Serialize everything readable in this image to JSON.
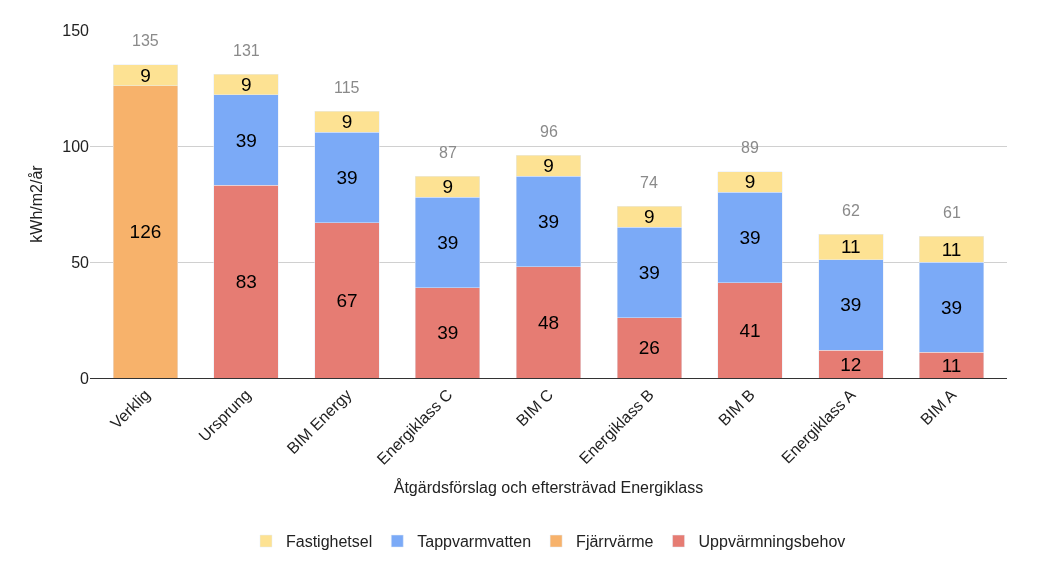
{
  "chart_data": {
    "type": "bar",
    "stacked": true,
    "xlabel": "Åtgärdsförslag och eftersträvad Energiklass",
    "ylabel": "kWh/m2/år",
    "categories": [
      "Verklig",
      "Ursprung",
      "BIM Energy",
      "Energiklass C",
      "BIM C",
      "Energiklass B",
      "BIM B",
      "Energiklass A",
      "BIM A"
    ],
    "series": [
      {
        "name": "Uppvärmningsbehov",
        "color": "#e67c73",
        "values": [
          null,
          83,
          67,
          39,
          48,
          26,
          41,
          12,
          11
        ]
      },
      {
        "name": "Fjärrvärme",
        "color": "#f7b26b",
        "values": [
          126,
          null,
          null,
          null,
          null,
          null,
          null,
          null,
          null
        ]
      },
      {
        "name": "Tappvarmvatten",
        "color": "#7baaf7",
        "values": [
          null,
          39,
          39,
          39,
          39,
          39,
          39,
          39,
          39
        ]
      },
      {
        "name": "Fastighetsel",
        "color": "#fde293",
        "values": [
          9,
          9,
          9,
          9,
          9,
          9,
          9,
          11,
          11
        ]
      }
    ],
    "totals": [
      "135",
      "131",
      "115",
      "87",
      "96",
      "74",
      "89",
      "62",
      "61"
    ],
    "data_labels": true,
    "ylim": [
      0,
      150
    ],
    "yticks": [
      0,
      50,
      100,
      150
    ],
    "grid": "y",
    "legend": "bottom"
  }
}
